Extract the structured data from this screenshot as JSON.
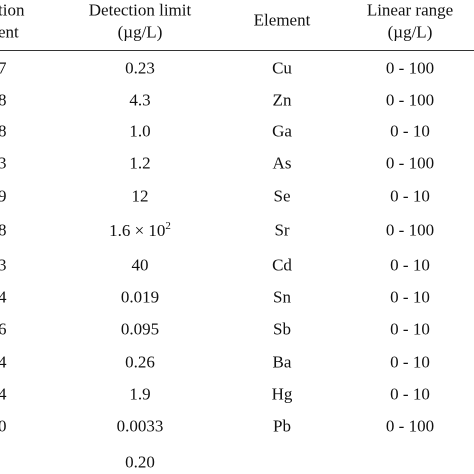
{
  "table": {
    "header": [
      {
        "lines": [
          "tion",
          "ent"
        ]
      },
      {
        "lines": [
          "Detection limit",
          "(µg/L)"
        ]
      },
      {
        "lines": [
          "Element"
        ]
      },
      {
        "lines": [
          "Linear range",
          "(µg/L)"
        ]
      }
    ],
    "rows": [
      {
        "first": "7",
        "limit": "0.23",
        "element": "Cu",
        "range": "0 - 100"
      },
      {
        "first": "8",
        "limit": "4.3",
        "element": "Zn",
        "range": "0 - 100"
      },
      {
        "first": "8",
        "limit": "1.0",
        "element": "Ga",
        "range": "0 - 10"
      },
      {
        "first": "3",
        "limit": "1.2",
        "element": "As",
        "range": "0 - 100"
      },
      {
        "first": "9",
        "limit": "12",
        "element": "Se",
        "range": "0 - 10"
      },
      {
        "first": "8",
        "limit": "1.6 × 10",
        "limit_sup": "2",
        "element": "Sr",
        "range": "0 - 100"
      },
      {
        "first": "3",
        "limit": "40",
        "element": "Cd",
        "range": "0 - 10"
      },
      {
        "first": "4",
        "limit": "0.019",
        "element": "Sn",
        "range": "0 - 10"
      },
      {
        "first": "6",
        "limit": "0.095",
        "element": "Sb",
        "range": "0 - 10"
      },
      {
        "first": "4",
        "limit": "0.26",
        "element": "Ba",
        "range": "0 - 10"
      },
      {
        "first": "4",
        "limit": "1.9",
        "element": "Hg",
        "range": "0 - 10"
      },
      {
        "first": "0",
        "limit": "0.0033",
        "element": "Pb",
        "range": "0 - 100"
      },
      {
        "limit": "0.20"
      }
    ]
  }
}
